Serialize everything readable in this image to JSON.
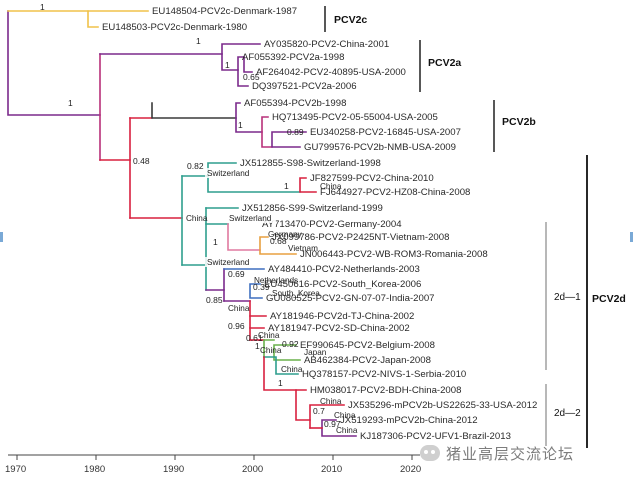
{
  "colors": {
    "yellow": "#f0c24a",
    "purple": "#7b2a8c",
    "magenta": "#b8307a",
    "red": "#d8203f",
    "dark": "#3a3a3a",
    "teal": "#2e9e8e",
    "pink": "#e07aa0",
    "orange": "#e8a040",
    "green": "#6ab04c",
    "blue": "#3f6fbf"
  },
  "tips": [
    {
      "label": "EU148504-PCV2c-Denmark-1987"
    },
    {
      "label": "EU148503-PCV2c-Denmark-1980"
    },
    {
      "label": "AY035820-PCV2-China-2001"
    },
    {
      "label": "AF055392-PCV2a-1998"
    },
    {
      "label": "AF264042-PCV2-40895-USA-2000"
    },
    {
      "label": "DQ397521-PCV2a-2006"
    },
    {
      "label": "AF055394-PCV2b-1998"
    },
    {
      "label": "HQ713495-PCV2-05-55004-USA-2005"
    },
    {
      "label": "EU340258-PCV2-16845-USA-2007"
    },
    {
      "label": "GU799576-PCV2b-NMB-USA-2009"
    },
    {
      "label": "JX512855-S98-Switzerland-1998"
    },
    {
      "label": "JF827599-PCV2-China-2010"
    },
    {
      "label": "FJ644927-PCV2-HZ08-China-2008"
    },
    {
      "label": "JX512856-S99-Switzerland-1999"
    },
    {
      "label": "AY713470-PCV2-Germany-2004"
    },
    {
      "label": "JX099786-PCV2-P2425NT-Vietnam-2008"
    },
    {
      "label": "JN006443-PCV2-WB-ROM3-Romania-2008"
    },
    {
      "label": "AY484410-PCV2-Netherlands-2003"
    },
    {
      "label": "EU450616-PCV2-South_Korea-2006"
    },
    {
      "label": "GU080525-PCV2-GN-07-07-India-2007"
    },
    {
      "label": "AY181946-PCV2d-TJ-China-2002"
    },
    {
      "label": "AY181947-PCV2-SD-China-2002"
    },
    {
      "label": "EF990645-PCV2-Belgium-2008"
    },
    {
      "label": "AB462384-PCV2-Japan-2008"
    },
    {
      "label": "HQ378157-PCV2-NIVS-1-Serbia-2010"
    },
    {
      "label": "HM038017-PCV2-BDH-China-2008"
    },
    {
      "label": "JX535296-mPCV2b-US22625-33-USA-2012"
    },
    {
      "label": "JX519293-mPCV2b-China-2012"
    },
    {
      "label": "KJ187306-PCV2-UFV1-Brazil-2013"
    }
  ],
  "support_values": [
    "1",
    "1",
    "1",
    "1",
    "0.65",
    "1",
    "0.89",
    "0.48",
    "0.82",
    "1",
    "1",
    "0.68",
    "0.69",
    "0.39",
    "0.85",
    "0.96",
    "1",
    "0.61",
    "0.92",
    "1",
    "0.7",
    "0.97"
  ],
  "regions": [
    "Switzerland",
    "China",
    "China",
    "Switzerland",
    "Germany",
    "Vietnam",
    "Switzerland",
    "Netherlands",
    "South_Korea",
    "China",
    "China",
    "China",
    "Japan",
    "China",
    "China",
    "China",
    "China"
  ],
  "clades": {
    "pcv2c": "PCV2c",
    "pcv2a": "PCV2a",
    "pcv2b": "PCV2b",
    "pcv2d": "PCV2d",
    "sub1": "2d—1",
    "sub2": "2d—2"
  },
  "axis_ticks": [
    "1970",
    "1980",
    "1990",
    "2000",
    "2010",
    "2020"
  ],
  "watermark": "猪业高层交流论坛"
}
